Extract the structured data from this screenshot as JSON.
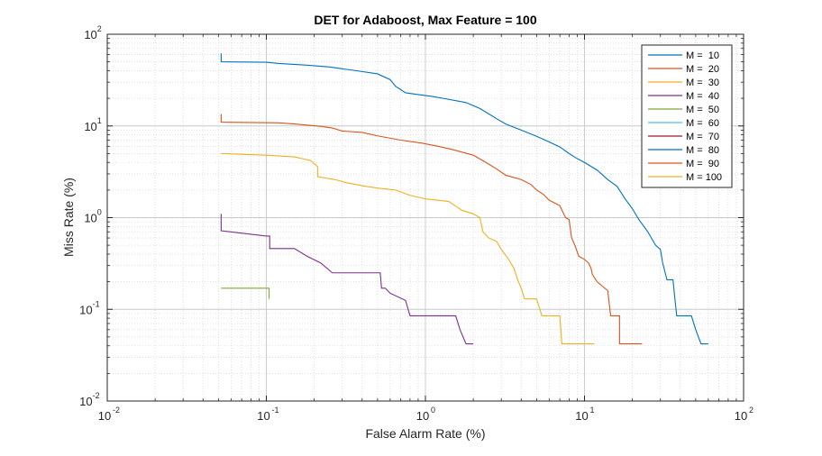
{
  "chart_data": {
    "type": "line",
    "title": "DET for Adaboost, Max Feature = 100",
    "xlabel": "False Alarm Rate (%)",
    "ylabel": "Miss Rate (%)",
    "x_scale": "log",
    "y_scale": "log",
    "xlim": [
      0.01,
      100
    ],
    "ylim": [
      0.01,
      100
    ],
    "grid": true,
    "legend_position": "top-right",
    "x_ticks": [
      {
        "base": "10",
        "exp": "-2"
      },
      {
        "base": "10",
        "exp": "-1"
      },
      {
        "base": "10",
        "exp": "0"
      },
      {
        "base": "10",
        "exp": "1"
      },
      {
        "base": "10",
        "exp": "2"
      }
    ],
    "y_ticks": [
      {
        "base": "10",
        "exp": "-2"
      },
      {
        "base": "10",
        "exp": "-1"
      },
      {
        "base": "10",
        "exp": "0"
      },
      {
        "base": "10",
        "exp": "1"
      },
      {
        "base": "10",
        "exp": "2"
      }
    ],
    "series": [
      {
        "name": "M =  10",
        "color": "#0072BD",
        "points": [
          [
            0.052,
            62
          ],
          [
            0.052,
            50
          ],
          [
            0.1,
            49.5
          ],
          [
            0.12,
            48
          ],
          [
            0.18,
            46
          ],
          [
            0.25,
            44
          ],
          [
            0.3,
            42
          ],
          [
            0.37,
            40
          ],
          [
            0.5,
            37
          ],
          [
            0.6,
            32
          ],
          [
            0.65,
            27
          ],
          [
            0.75,
            23
          ],
          [
            0.9,
            22
          ],
          [
            1.1,
            21
          ],
          [
            1.4,
            19.5
          ],
          [
            1.8,
            18
          ],
          [
            2.2,
            15.5
          ],
          [
            2.8,
            12
          ],
          [
            3.2,
            10.5
          ],
          [
            4.0,
            9.0
          ],
          [
            5.0,
            7.7
          ],
          [
            6.0,
            6.7
          ],
          [
            7.0,
            5.9
          ],
          [
            8.0,
            5.0
          ],
          [
            9.0,
            4.4
          ],
          [
            10.0,
            4.0
          ],
          [
            12.0,
            3.3
          ],
          [
            14.0,
            2.6
          ],
          [
            16.0,
            2.2
          ],
          [
            18.0,
            1.6
          ],
          [
            20.0,
            1.25
          ],
          [
            22.0,
            0.95
          ],
          [
            25.0,
            0.7
          ],
          [
            28.0,
            0.5
          ],
          [
            30.0,
            0.45
          ],
          [
            31.0,
            0.32
          ],
          [
            33.0,
            0.21
          ],
          [
            36.0,
            0.21
          ],
          [
            37.0,
            0.13
          ],
          [
            38.0,
            0.085
          ],
          [
            44.0,
            0.085
          ],
          [
            47.0,
            0.085
          ],
          [
            50.0,
            0.06
          ],
          [
            54.0,
            0.042
          ],
          [
            60.0,
            0.042
          ]
        ]
      },
      {
        "name": "M =  20",
        "color": "#D95319",
        "points": [
          [
            0.052,
            13.5
          ],
          [
            0.052,
            11
          ],
          [
            0.12,
            10.8
          ],
          [
            0.15,
            10.5
          ],
          [
            0.22,
            9.9
          ],
          [
            0.26,
            9.5
          ],
          [
            0.3,
            8.8
          ],
          [
            0.4,
            8.5
          ],
          [
            0.5,
            7.8
          ],
          [
            0.7,
            7.0
          ],
          [
            0.95,
            6.5
          ],
          [
            1.2,
            6.0
          ],
          [
            1.5,
            5.5
          ],
          [
            2.0,
            4.8
          ],
          [
            2.4,
            4.0
          ],
          [
            2.8,
            3.4
          ],
          [
            3.2,
            2.9
          ],
          [
            4.0,
            2.6
          ],
          [
            4.6,
            2.3
          ],
          [
            5.0,
            2.0
          ],
          [
            5.5,
            1.8
          ],
          [
            6.0,
            1.55
          ],
          [
            7.0,
            1.35
          ],
          [
            7.6,
            1.0
          ],
          [
            8.0,
            0.95
          ],
          [
            8.3,
            0.6
          ],
          [
            8.7,
            0.5
          ],
          [
            9.2,
            0.38
          ],
          [
            10.0,
            0.35
          ],
          [
            10.6,
            0.32
          ],
          [
            11.0,
            0.28
          ],
          [
            11.2,
            0.24
          ],
          [
            12.0,
            0.2
          ],
          [
            14.0,
            0.16
          ],
          [
            14.6,
            0.085
          ],
          [
            15.0,
            0.085
          ],
          [
            16.6,
            0.085
          ],
          [
            16.6,
            0.042
          ],
          [
            23.0,
            0.042
          ]
        ]
      },
      {
        "name": "M =  30",
        "color": "#EDB120",
        "points": [
          [
            0.052,
            5.0
          ],
          [
            0.1,
            4.8
          ],
          [
            0.15,
            4.6
          ],
          [
            0.19,
            4.2
          ],
          [
            0.21,
            3.6
          ],
          [
            0.21,
            2.8
          ],
          [
            0.27,
            2.6
          ],
          [
            0.32,
            2.4
          ],
          [
            0.42,
            2.2
          ],
          [
            0.5,
            2.1
          ],
          [
            0.65,
            2.0
          ],
          [
            0.8,
            1.75
          ],
          [
            1.0,
            1.6
          ],
          [
            1.4,
            1.5
          ],
          [
            1.7,
            1.2
          ],
          [
            2.0,
            1.1
          ],
          [
            2.2,
            1.0
          ],
          [
            2.3,
            0.7
          ],
          [
            2.5,
            0.6
          ],
          [
            2.8,
            0.55
          ],
          [
            3.0,
            0.45
          ],
          [
            3.3,
            0.36
          ],
          [
            3.6,
            0.28
          ],
          [
            3.8,
            0.21
          ],
          [
            4.0,
            0.17
          ],
          [
            4.2,
            0.13
          ],
          [
            5.0,
            0.13
          ],
          [
            5.4,
            0.085
          ],
          [
            6.0,
            0.085
          ],
          [
            7.0,
            0.085
          ],
          [
            7.2,
            0.042
          ],
          [
            11.5,
            0.042
          ]
        ]
      },
      {
        "name": "M =  40",
        "color": "#7E2F8E",
        "points": [
          [
            0.052,
            1.1
          ],
          [
            0.052,
            0.72
          ],
          [
            0.1,
            0.63
          ],
          [
            0.105,
            0.63
          ],
          [
            0.105,
            0.46
          ],
          [
            0.15,
            0.46
          ],
          [
            0.18,
            0.38
          ],
          [
            0.22,
            0.32
          ],
          [
            0.26,
            0.25
          ],
          [
            0.45,
            0.25
          ],
          [
            0.52,
            0.25
          ],
          [
            0.53,
            0.17
          ],
          [
            0.56,
            0.17
          ],
          [
            0.6,
            0.15
          ],
          [
            0.75,
            0.125
          ],
          [
            0.8,
            0.085
          ],
          [
            1.0,
            0.085
          ],
          [
            1.55,
            0.085
          ],
          [
            1.65,
            0.06
          ],
          [
            1.8,
            0.042
          ],
          [
            2.0,
            0.042
          ]
        ]
      },
      {
        "name": "M =  50",
        "color": "#77AC30",
        "points": [
          [
            0.052,
            0.17
          ],
          [
            0.104,
            0.17
          ],
          [
            0.104,
            0.13
          ]
        ]
      },
      {
        "name": "M =  60",
        "color": "#4DBEEE",
        "points": []
      },
      {
        "name": "M =  70",
        "color": "#A2142F",
        "points": []
      },
      {
        "name": "M =  80",
        "color": "#0072BD",
        "points": []
      },
      {
        "name": "M =  90",
        "color": "#D95319",
        "points": []
      },
      {
        "name": "M = 100",
        "color": "#EDB120",
        "points": []
      }
    ]
  }
}
